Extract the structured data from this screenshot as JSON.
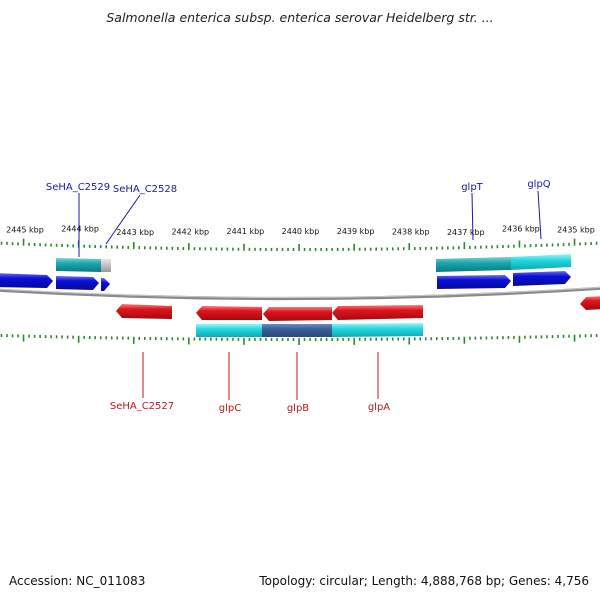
{
  "title": "Salmonella enterica subsp. enterica serovar Heidelberg str. ...",
  "footer": {
    "accession": "Accession: NC_011083",
    "topology": "Topology: circular; Length: 4,888,768 bp; Genes: 4,756"
  },
  "ticks": [
    "2445 kbp",
    "2444 kbp",
    "2443 kbp",
    "2442 kbp",
    "2441 kbp",
    "2440 kbp",
    "2439 kbp",
    "2438 kbp",
    "2437 kbp",
    "2436 kbp",
    "2435 kbp"
  ],
  "genes_forward": [
    "SeHA_C2529",
    "SeHA_C2528",
    "glpT",
    "glpQ"
  ],
  "genes_reverse": [
    "SeHA_C2527",
    "glpC",
    "glpB",
    "glpA"
  ],
  "colors": {
    "forward_gene": "#0a10d8",
    "reverse_gene": "#e0141c",
    "cds_feature": "#22d8e0",
    "forward_label": "#1a1aa8",
    "reverse_label": "#c01818",
    "tick": "#2a8a2a",
    "backbone": "#777777"
  }
}
